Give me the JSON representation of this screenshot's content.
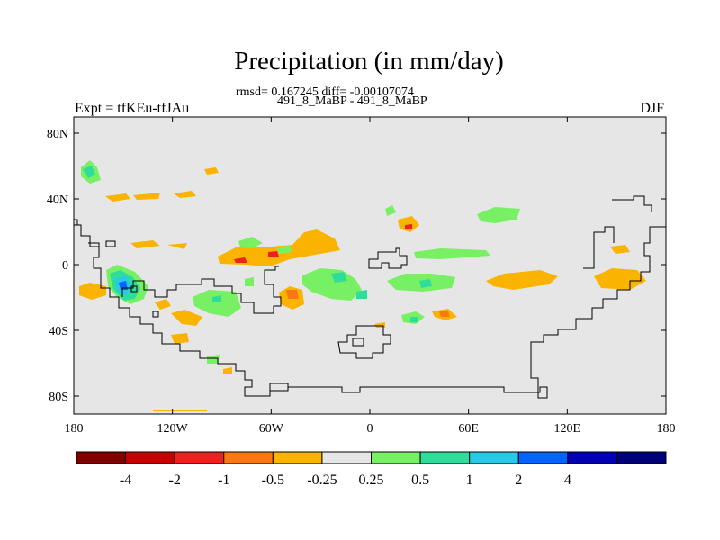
{
  "title": "Precipitation (in mm/day)",
  "subtitle_line1": "rmsd= 0.167245 diff= -0.00107074",
  "subtitle_line2": "491_8_MaBP - 491_8_MaBP",
  "left_label": "Expt = tfKEu-tfJAu",
  "right_label": "DJF",
  "colors": {
    "background_field": "#e6e6e6",
    "coast": "#000000"
  },
  "lat_ticks": [
    "80N",
    "40N",
    "0",
    "40S",
    "80S"
  ],
  "lon_ticks": [
    "180",
    "120W",
    "60W",
    "0",
    "60E",
    "120E",
    "180"
  ],
  "colorbar": {
    "colors": [
      "#800000",
      "#c80000",
      "#f02020",
      "#fa7814",
      "#fab400",
      "#e6e6e6",
      "#78f064",
      "#30dc9a",
      "#28c8e6",
      "#0064ff",
      "#0000b4",
      "#000078"
    ],
    "labels": [
      "-4",
      "-2",
      "-1",
      "-0.5",
      "-0.25",
      "0.25",
      "0.5",
      "1",
      "2",
      "4"
    ]
  }
}
